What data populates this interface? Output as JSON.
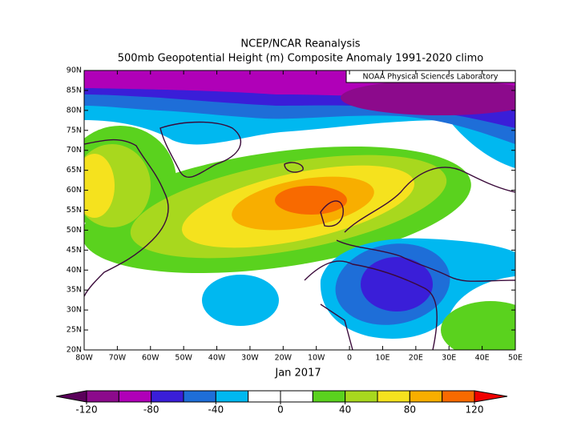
{
  "title": "NCEP/NCAR Reanalysis",
  "subtitle": "500mb Geopotential Height (m) Composite Anomaly 1991-2020 climo",
  "credit": "NOAA Physical Sciences Laboratory",
  "period": "Jan 2017",
  "lat_labels": [
    "20N",
    "25N",
    "30N",
    "35N",
    "40N",
    "45N",
    "50N",
    "55N",
    "60N",
    "65N",
    "70N",
    "75N",
    "80N",
    "85N",
    "90N"
  ],
  "lon_labels": [
    "80W",
    "70W",
    "60W",
    "50W",
    "40W",
    "30W",
    "20W",
    "10W",
    "0",
    "10E",
    "20E",
    "30E",
    "40E",
    "50E"
  ],
  "colorbar": {
    "range": [
      -120,
      120
    ],
    "ticks": [
      -120,
      -80,
      -40,
      0,
      40,
      80,
      120
    ],
    "colors": [
      "#8c0a8c",
      "#b000b8",
      "#3a1ed8",
      "#1e6ed8",
      "#00b8f0",
      "#ffffff",
      "#ffffff",
      "#5ad21e",
      "#a8d81e",
      "#f5e21e",
      "#f8ae00",
      "#f86a00"
    ],
    "under_color": "#5a005a",
    "over_color": "#f00000"
  }
}
